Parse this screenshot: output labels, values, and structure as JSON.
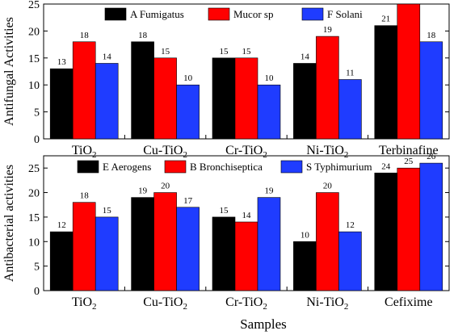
{
  "xlabel": "Samples",
  "chart_data": [
    {
      "type": "bar",
      "title": "",
      "ylabel": "Antifungal Activities",
      "ylim": [
        0,
        25
      ],
      "yticks": [
        0,
        5,
        10,
        15,
        20,
        25
      ],
      "categories": [
        "TiO2",
        "Cu-TiO2",
        "Cr-TiO2",
        "Ni-TiO2",
        "Terbinafine"
      ],
      "category_parts": [
        {
          "main": "TiO",
          "sub": "2"
        },
        {
          "main": "Cu-TiO",
          "sub": "2"
        },
        {
          "main": "Cr-TiO",
          "sub": "2"
        },
        {
          "main": "Ni-TiO",
          "sub": "2"
        },
        {
          "main": "Terbinafine",
          "sub": ""
        }
      ],
      "series": [
        {
          "name": "A Fumigatus",
          "color": "#000000",
          "values": [
            13,
            18,
            15,
            14,
            21
          ]
        },
        {
          "name": "Mucor sp",
          "color": "#ff0000",
          "values": [
            18,
            15,
            15,
            19,
            25
          ]
        },
        {
          "name": "F Solani",
          "color": "#1f3cff",
          "values": [
            14,
            10,
            10,
            11,
            18
          ]
        }
      ],
      "legend": "top, inside",
      "grid": false
    },
    {
      "type": "bar",
      "title": "",
      "ylabel": "Antibacterial activities",
      "ylim": [
        0,
        27.5
      ],
      "yticks": [
        0,
        5,
        10,
        15,
        20,
        25
      ],
      "categories": [
        "TiO2",
        "Cu-TiO2",
        "Cr-TiO2",
        "Ni-TiO2",
        "Cefixime"
      ],
      "category_parts": [
        {
          "main": "TiO",
          "sub": "2"
        },
        {
          "main": "Cu-TiO",
          "sub": "2"
        },
        {
          "main": "Cr-TiO",
          "sub": "2"
        },
        {
          "main": "Ni-TiO",
          "sub": "2"
        },
        {
          "main": "Cefixime",
          "sub": ""
        }
      ],
      "series": [
        {
          "name": "E Aerogens",
          "color": "#000000",
          "values": [
            12,
            19,
            15,
            10,
            24
          ]
        },
        {
          "name": "B Bronchiseptica",
          "color": "#ff0000",
          "values": [
            18,
            20,
            14,
            20,
            25
          ]
        },
        {
          "name": "S Typhimurium",
          "color": "#1f3cff",
          "values": [
            15,
            17,
            19,
            12,
            26
          ]
        }
      ],
      "legend": "top, inside",
      "grid": false
    }
  ]
}
